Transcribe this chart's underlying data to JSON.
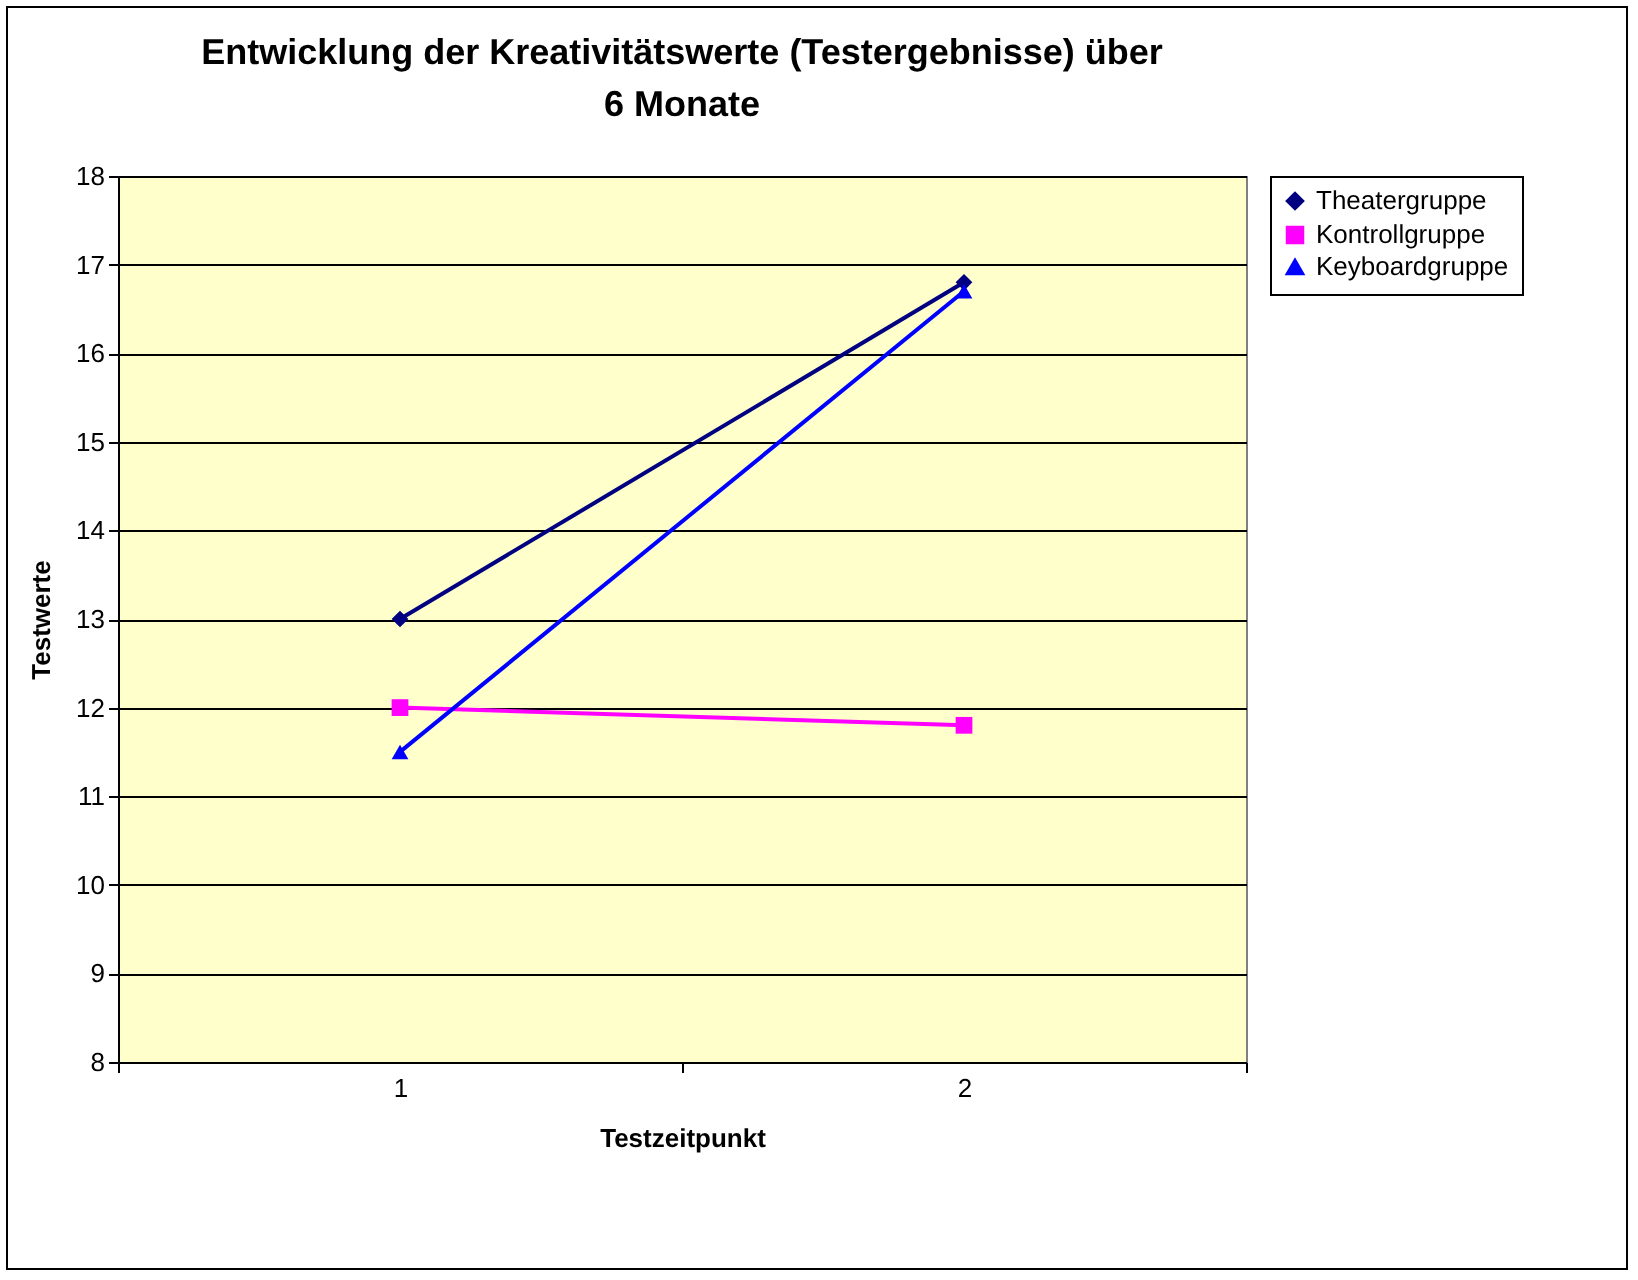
{
  "chart_data": {
    "type": "line",
    "title": "Entwicklung der Kreativitätswerte (Testergebnisse) über\n6 Monate",
    "xlabel": "Testzeitpunkt",
    "ylabel": "Testwerte",
    "categories": [
      "1",
      "2"
    ],
    "series": [
      {
        "name": "Theatergruppe",
        "color": "#000080",
        "marker": "diamond",
        "values": [
          13,
          16.8
        ]
      },
      {
        "name": "Kontrollgruppe",
        "color": "#ff00ff",
        "marker": "square",
        "values": [
          12,
          11.8
        ]
      },
      {
        "name": "Keyboardgruppe",
        "color": "#0000ff",
        "marker": "triangle",
        "values": [
          11.5,
          16.7
        ]
      }
    ],
    "ylim": [
      8,
      18
    ],
    "yticks": [
      8,
      9,
      10,
      11,
      12,
      13,
      14,
      15,
      16,
      17,
      18
    ],
    "grid": "y",
    "legend": "right",
    "line_style": "solid"
  }
}
